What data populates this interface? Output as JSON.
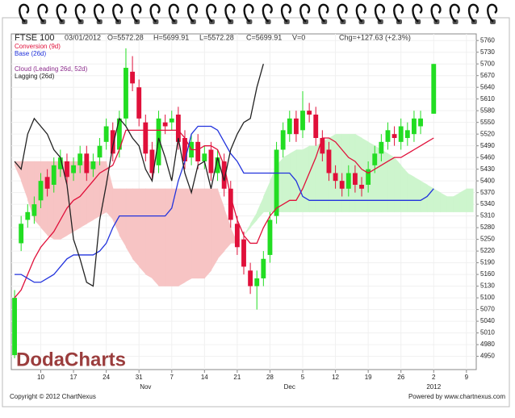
{
  "chart_data": {
    "type": "candlestick",
    "title": "FTSE 100",
    "date": "03/01/2012",
    "quote": [
      "O=5572.28",
      "H=5699.91",
      "L=5572.28",
      "C=5699.91",
      "V=0",
      "Chg=+127.63 (+2.3%)"
    ],
    "categories": [
      null,
      null,
      null,
      null,
      "10",
      null,
      null,
      null,
      null,
      "17",
      null,
      null,
      null,
      null,
      "24",
      null,
      null,
      null,
      null,
      "31",
      null,
      null,
      null,
      null,
      "7",
      null,
      null,
      null,
      null,
      "14",
      null,
      null,
      null,
      null,
      "21",
      null,
      null,
      null,
      null,
      "28",
      null,
      null,
      null,
      null,
      "5",
      null,
      null,
      null,
      null,
      "12",
      null,
      null,
      null,
      null,
      "19",
      null,
      null,
      null,
      null,
      "26",
      null,
      null,
      null,
      null,
      "2",
      null,
      null,
      null,
      null,
      "9",
      null
    ],
    "months": [
      null,
      null,
      null,
      null,
      null,
      null,
      null,
      null,
      null,
      null,
      null,
      null,
      null,
      null,
      null,
      null,
      null,
      null,
      null,
      null,
      "Nov",
      null,
      null,
      null,
      null,
      null,
      null,
      null,
      null,
      null,
      null,
      null,
      null,
      null,
      null,
      null,
      null,
      null,
      null,
      null,
      null,
      null,
      "Dec",
      null,
      null,
      null,
      null,
      null,
      null,
      null,
      null,
      null,
      null,
      null,
      null,
      null,
      null,
      null,
      null,
      null,
      null,
      null,
      null,
      null,
      "2012",
      null,
      null,
      null,
      null,
      null,
      null
    ],
    "ohlc": {
      "up_color": "#22dd22",
      "down_color": "#e0103a",
      "open": [
        4953,
        5240,
        5300,
        5310,
        5350,
        5410,
        5390,
        5430,
        5450,
        5420,
        5440,
        5470,
        5430,
        5460,
        5500,
        5530,
        5480,
        5560,
        5680,
        5640,
        5550,
        5480,
        5440,
        5550,
        5550,
        5570,
        5510,
        5460,
        5500,
        5450,
        5480,
        5420,
        5450,
        5380,
        5290,
        5250,
        5170,
        5130,
        5150,
        5210,
        5310,
        5480,
        5520,
        5560,
        5530,
        5580,
        5570,
        5510,
        5480,
        5420,
        5400,
        5380,
        5420,
        5390,
        5390,
        5440,
        5470,
        5500,
        5520,
        5500,
        5510,
        5520,
        5540,
        null,
        5572.28,
        null,
        null,
        null,
        null,
        null,
        null
      ],
      "high": [
        5120,
        5310,
        5340,
        5360,
        5420,
        5430,
        5460,
        5480,
        5470,
        5460,
        5490,
        5490,
        5470,
        5510,
        5560,
        5550,
        5580,
        5740,
        5720,
        5660,
        5570,
        5500,
        5580,
        5570,
        5580,
        5590,
        5530,
        5520,
        5520,
        5490,
        5500,
        5480,
        5470,
        5400,
        5310,
        5270,
        5190,
        5170,
        5220,
        5320,
        5500,
        5550,
        5580,
        5580,
        5630,
        5600,
        5590,
        5530,
        5500,
        5440,
        5420,
        5440,
        5440,
        5410,
        5450,
        5490,
        5520,
        5550,
        5540,
        5560,
        5550,
        5580,
        5580,
        null,
        5699.91,
        null,
        null,
        null,
        null,
        null,
        null
      ],
      "low": [
        4945,
        5220,
        5280,
        5290,
        5330,
        5360,
        5370,
        5410,
        5390,
        5400,
        5420,
        5400,
        5410,
        5440,
        5480,
        5450,
        5460,
        5540,
        5630,
        5540,
        5450,
        5400,
        5420,
        5520,
        5530,
        5480,
        5430,
        5440,
        5430,
        5430,
        5400,
        5400,
        5360,
        5280,
        5210,
        5160,
        5110,
        5070,
        5130,
        5190,
        5290,
        5460,
        5500,
        5500,
        5510,
        5550,
        5490,
        5450,
        5400,
        5380,
        5360,
        5360,
        5370,
        5360,
        5370,
        5420,
        5450,
        5480,
        5490,
        5480,
        5490,
        5500,
        5520,
        null,
        5572.28,
        null,
        null,
        null,
        null,
        null,
        null
      ],
      "close": [
        5100,
        5290,
        5320,
        5340,
        5400,
        5380,
        5440,
        5460,
        5410,
        5440,
        5470,
        5420,
        5450,
        5490,
        5540,
        5470,
        5560,
        5690,
        5650,
        5560,
        5470,
        5420,
        5560,
        5540,
        5560,
        5500,
        5450,
        5500,
        5450,
        5470,
        5420,
        5460,
        5380,
        5300,
        5230,
        5180,
        5130,
        5150,
        5200,
        5300,
        5480,
        5530,
        5560,
        5520,
        5580,
        5570,
        5510,
        5470,
        5420,
        5400,
        5380,
        5420,
        5390,
        5380,
        5430,
        5470,
        5500,
        5530,
        5510,
        5540,
        5530,
        5560,
        5560,
        null,
        5699.91,
        null,
        null,
        null,
        null,
        null,
        null
      ]
    },
    "series": [
      {
        "name": "Conversion (9d)",
        "color": "#e0103a",
        "values": [
          5100,
          5120,
          5160,
          5200,
          5230,
          5250,
          5270,
          5300,
          5330,
          5350,
          5360,
          5380,
          5400,
          5420,
          5430,
          5440,
          5480,
          5530,
          5530,
          5530,
          5530,
          5530,
          5530,
          5530,
          5530,
          5530,
          5510,
          5480,
          5480,
          5490,
          5490,
          5480,
          5440,
          5360,
          5300,
          5260,
          5240,
          5240,
          5280,
          5310,
          5330,
          5340,
          5350,
          5350,
          5380,
          5420,
          5460,
          5510,
          5510,
          5500,
          5480,
          5460,
          5450,
          5430,
          5420,
          5430,
          5440,
          5450,
          5460,
          5460,
          5470,
          5480,
          5490,
          5500,
          5510,
          null,
          null,
          null,
          null,
          null,
          null
        ]
      },
      {
        "name": "Base (26d)",
        "color": "#2233dd",
        "values": [
          5160,
          5160,
          5150,
          5140,
          5140,
          5150,
          5160,
          5180,
          5200,
          5210,
          5210,
          5210,
          5210,
          5220,
          5240,
          5280,
          5310,
          5310,
          5310,
          5310,
          5310,
          5310,
          5310,
          5310,
          5330,
          5400,
          5450,
          5520,
          5540,
          5540,
          5540,
          5530,
          5500,
          5470,
          5450,
          5420,
          5420,
          5420,
          5420,
          5420,
          5420,
          5420,
          5420,
          5400,
          5360,
          5350,
          5350,
          5350,
          5350,
          5350,
          5350,
          5350,
          5350,
          5350,
          5350,
          5350,
          5350,
          5350,
          5350,
          5350,
          5350,
          5350,
          5350,
          5360,
          5380,
          null,
          null,
          null,
          null,
          null,
          null
        ]
      },
      {
        "name": "Lagging (26d)",
        "color": "#222222",
        "values": [
          5450,
          5430,
          5520,
          5560,
          5540,
          5520,
          5480,
          5460,
          5390,
          5250,
          5200,
          5140,
          5130,
          5300,
          5390,
          5490,
          5560,
          5540,
          5510,
          5490,
          5430,
          5400,
          5510,
          5460,
          5400,
          5510,
          5420,
          5370,
          5440,
          5450,
          5380,
          5460,
          5400,
          5480,
          5520,
          5550,
          5560,
          5640,
          5700,
          null,
          null,
          null,
          null,
          null,
          null,
          null,
          null,
          null,
          null,
          null,
          null,
          null,
          null,
          null,
          null,
          null,
          null,
          null,
          null,
          null,
          null,
          null,
          null,
          null,
          null,
          null,
          null,
          null,
          null,
          null,
          null
        ]
      }
    ],
    "cloud": {
      "name": "Cloud (Leading 26d, 52d)",
      "color": "#8b2a8b",
      "fill_colors": [
        "#f7c4c4",
        "#cdf5cd"
      ],
      "span_a": [
        5440,
        5400,
        5350,
        5300,
        5280,
        5260,
        5250,
        5250,
        5260,
        5270,
        5280,
        5290,
        5300,
        5310,
        5320,
        5300,
        5260,
        5230,
        5200,
        5180,
        5160,
        5150,
        5130,
        5130,
        5130,
        5130,
        5140,
        5150,
        5150,
        5150,
        5170,
        5200,
        5220,
        5240,
        5240,
        5260,
        5290,
        5320,
        5360,
        5400,
        5440,
        5460,
        5470,
        5480,
        5480,
        5490,
        5490,
        5500,
        5510,
        5520,
        5520,
        5520,
        5520,
        5510,
        5500,
        5490,
        5480,
        5470,
        5460,
        5440,
        5420,
        5410,
        5400,
        5390,
        5380,
        5370,
        5360,
        5360,
        5370,
        5380,
        5380
      ],
      "span_b": [
        5450,
        5450,
        5450,
        5450,
        5450,
        5450,
        5450,
        5450,
        5450,
        5450,
        5450,
        5450,
        5450,
        5450,
        5450,
        5380,
        5380,
        5380,
        5380,
        5380,
        5380,
        5380,
        5380,
        5380,
        5380,
        5380,
        5380,
        5380,
        5380,
        5380,
        5380,
        5380,
        5330,
        5280,
        5240,
        5260,
        5280,
        5300,
        5320,
        5320,
        5320,
        5320,
        5320,
        5320,
        5320,
        5320,
        5320,
        5320,
        5320,
        5320,
        5320,
        5320,
        5320,
        5320,
        5320,
        5320,
        5320,
        5320,
        5320,
        5320,
        5320,
        5320,
        5320,
        5320,
        5320,
        5320,
        5320,
        5320,
        5320,
        5320,
        5320
      ]
    },
    "ylim": [
      4916,
      5777
    ],
    "yticks": [
      4950,
      4980,
      5010,
      5040,
      5070,
      5100,
      5130,
      5160,
      5190,
      5220,
      5250,
      5280,
      5310,
      5340,
      5370,
      5400,
      5430,
      5460,
      5490,
      5520,
      5550,
      5580,
      5610,
      5640,
      5670,
      5700,
      5730,
      5760
    ],
    "grid": true,
    "logo": "DodaCharts",
    "copyright": "Copyright © 2012 ChartNexus",
    "powered": "Powered by www.chartnexus.com"
  }
}
